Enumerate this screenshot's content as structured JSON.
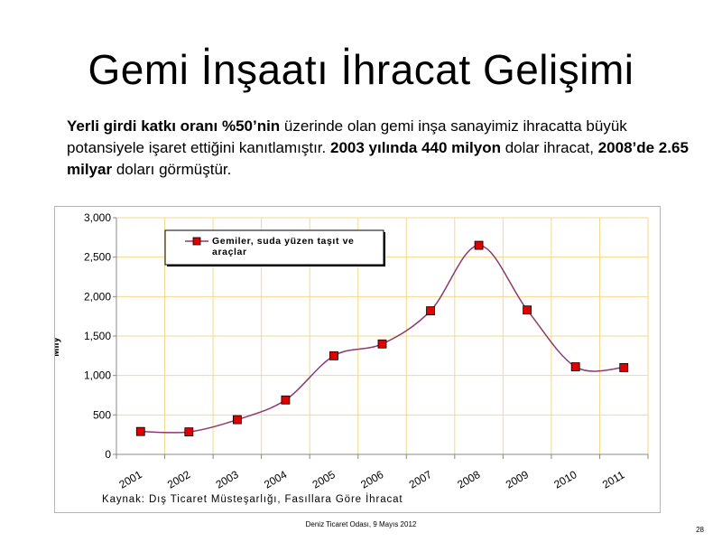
{
  "slide": {
    "title": "Gemi İnşaatı İhracat Gelişimi",
    "intro": {
      "p1_bold": "Yerli girdi katkı oranı %50’nin",
      "p2": " üzerinde olan gemi inşa sanayimiz ihracatta büyük potansiyele işaret ettiğini kanıtlamıştır.  ",
      "p3_bold": "2003 yılında 440 milyon",
      "p4": " dolar ihracat, ",
      "p5_bold": "2008’de 2.65 milyar",
      "p6": " doları görmüştür."
    },
    "footer": "Deniz Ticaret Odası, 9 Mayıs 2012",
    "page_number": "28"
  },
  "chart_data": {
    "type": "line",
    "categories": [
      "2001",
      "2002",
      "2003",
      "2004",
      "2005",
      "2006",
      "2007",
      "2008",
      "2009",
      "2010",
      "2011"
    ],
    "series": [
      {
        "name": "Gemiler, suda yüzen taşıt ve araçlar",
        "values": [
          290,
          285,
          440,
          690,
          1250,
          1400,
          1820,
          2650,
          1830,
          1110,
          1100
        ],
        "line_color": "#8b3a6e",
        "marker_color": "#e00000"
      }
    ],
    "ylabel": "Mily",
    "xlabel": "",
    "yticks": [
      "0",
      "500",
      "1,000",
      "1,500",
      "2,000",
      "2,500",
      "3,000"
    ],
    "ylim": [
      0,
      3000
    ],
    "grid": true,
    "grid_color": "#f2d98a",
    "legend_position": "top-left",
    "source_note": "Kaynak: Dış Ticaret Müsteşarlığı, Fasıllara Göre İhracat"
  }
}
